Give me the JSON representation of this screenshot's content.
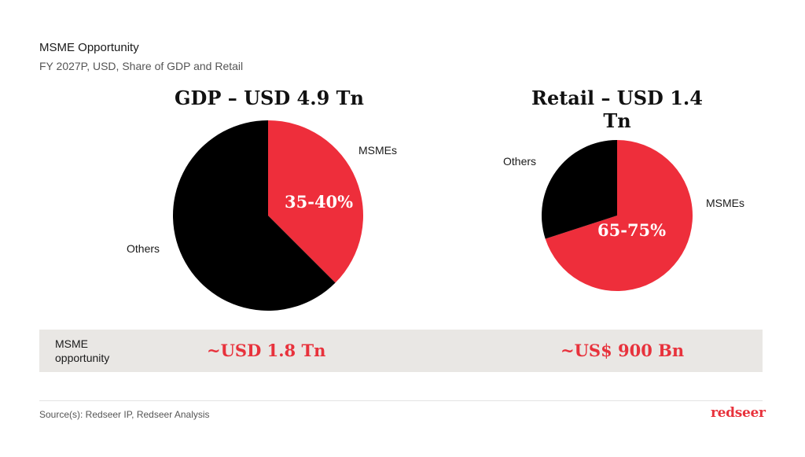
{
  "header": {
    "title": "MSME Opportunity",
    "subtitle": "FY 2027P, USD, Share of GDP and Retail"
  },
  "chart_data": [
    {
      "type": "pie",
      "title": "GDP – USD 4.9 Tn",
      "slices": [
        {
          "label": "MSMEs",
          "value": 37.5,
          "display": "35-40%",
          "color": "#ee2e3b"
        },
        {
          "label": "Others",
          "value": 62.5,
          "color": "#000000"
        }
      ],
      "legend": "none"
    },
    {
      "type": "pie",
      "title": "Retail – USD 1.4 Tn",
      "slices": [
        {
          "label": "MSMEs",
          "value": 70,
          "display": "65-75%",
          "color": "#ee2e3b"
        },
        {
          "label": "Others",
          "value": 30,
          "color": "#000000"
        }
      ],
      "legend": "none"
    }
  ],
  "opportunity": {
    "label": "MSME opportunity",
    "gdp_value": "~USD 1.8 Tn",
    "retail_value": "~US$ 900 Bn"
  },
  "footer": {
    "source": "Source(s): Redseer IP, Redseer Analysis",
    "logo_text": "redseer"
  }
}
